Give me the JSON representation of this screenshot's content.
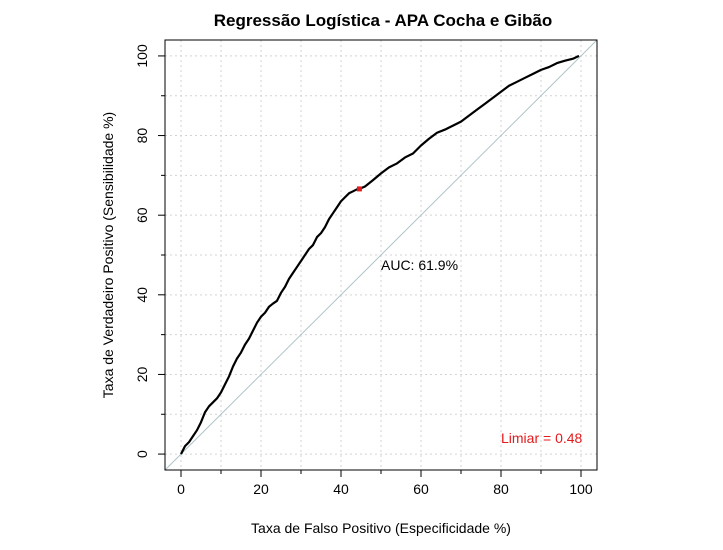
{
  "chart_data": {
    "type": "line",
    "title": "Regressão Logística - APA Cocha e Gibão",
    "xlabel": "Taxa de Falso Positivo (Especificidade %)",
    "ylabel": "Taxa de Verdadeiro Positivo (Sensibilidade %)",
    "xlim": [
      -4,
      104
    ],
    "ylim": [
      -4,
      104
    ],
    "xticks": [
      0,
      20,
      40,
      60,
      80,
      100
    ],
    "yticks": [
      0,
      20,
      40,
      60,
      80,
      100
    ],
    "grid": true,
    "grid_color": "#d3d3d3",
    "series": [
      {
        "color": "#000000",
        "x": [
          0,
          1,
          2,
          3,
          4,
          5,
          6,
          7,
          8,
          9,
          10,
          11,
          12,
          13,
          14,
          15,
          16,
          17,
          18,
          19,
          20,
          21,
          22,
          23,
          24,
          25,
          26,
          27,
          28,
          29,
          30,
          31,
          32,
          33,
          34,
          35,
          36,
          37,
          38,
          39,
          40,
          41,
          42,
          43,
          44,
          44.6,
          46,
          48,
          50,
          52,
          54,
          56,
          58,
          60,
          62,
          64,
          66,
          68,
          70,
          72,
          74,
          76,
          78,
          80,
          82,
          84,
          86,
          88,
          90,
          92,
          94,
          96,
          98,
          99.5
        ],
        "y": [
          0,
          2,
          3,
          4.5,
          6,
          8,
          10.5,
          12,
          13,
          14,
          15.5,
          17.5,
          19.5,
          22,
          24,
          25.5,
          27.5,
          29,
          31,
          33,
          34.5,
          35.5,
          37,
          37.8,
          38.5,
          40.5,
          42,
          44,
          45.5,
          47,
          48.5,
          50,
          51.5,
          52.5,
          54.5,
          55.5,
          57,
          59,
          60.5,
          62,
          63.5,
          64.5,
          65.5,
          66,
          66.5,
          66.6,
          67.2,
          68.8,
          70.5,
          72,
          73,
          74.5,
          75.5,
          77.5,
          79.2,
          80.7,
          81.5,
          82.5,
          83.5,
          85,
          86.5,
          88,
          89.5,
          91,
          92.5,
          93.5,
          94.5,
          95.5,
          96.5,
          97.2,
          98.2,
          98.8,
          99.3,
          100
        ]
      },
      {
        "color": "#b0c4c8",
        "x": [
          -4,
          104
        ],
        "y": [
          -4,
          104
        ]
      }
    ],
    "threshold_point": {
      "x": 44.6,
      "y": 66.6,
      "color": "#e41a1c"
    },
    "annotations": [
      {
        "text": "AUC: 61.9%",
        "x": 50,
        "y": 47.5,
        "color": "#000000"
      },
      {
        "text": "Limiar = 0.48",
        "x": 80,
        "y": 4,
        "color": "#e41a1c"
      }
    ]
  }
}
